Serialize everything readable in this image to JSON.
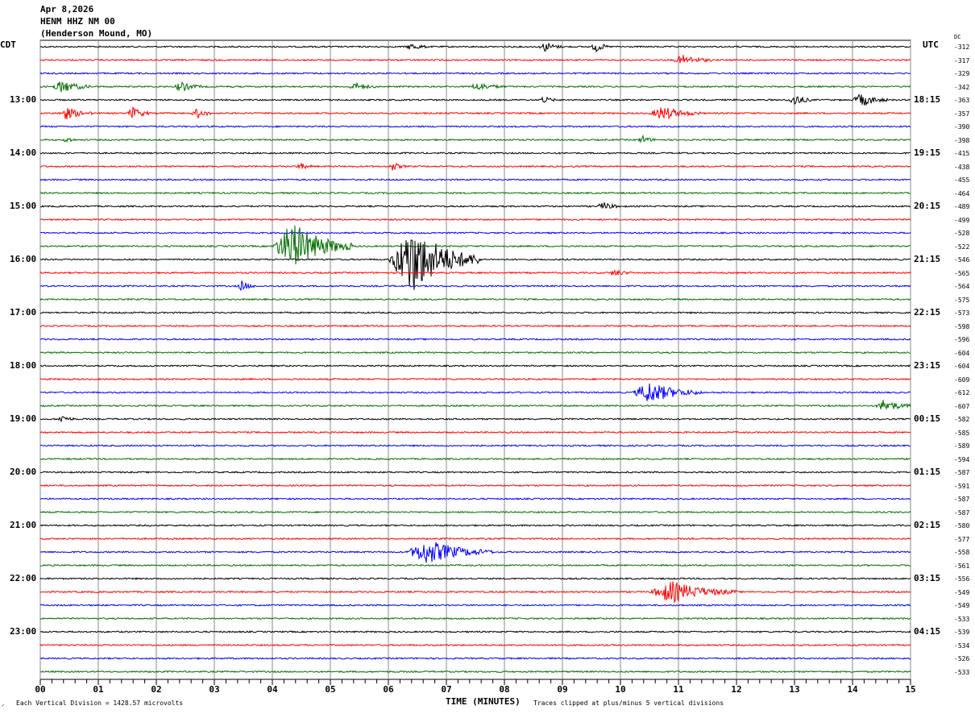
{
  "header": {
    "date": "Apr 8,2026",
    "station": "HENM HHZ NM 00",
    "location": "(Henderson Mound, MO)"
  },
  "left_axis_label": "CDT",
  "right_axis_label": "UTC",
  "dc_label": "DC",
  "footer": {
    "scale": "Each Vertical Division = 1428.57 microvolts",
    "xlabel": "TIME (MINUTES)",
    "clip_note": "Traces clipped at plus/minus 5 vertical divisions"
  },
  "chart_data": {
    "type": "line",
    "title": "HENM HHZ NM 00 helicorder",
    "xlabel": "TIME (MINUTES)",
    "xlim": [
      0,
      15
    ],
    "x_ticks": [
      "00",
      "01",
      "02",
      "03",
      "04",
      "05",
      "06",
      "07",
      "08",
      "09",
      "10",
      "11",
      "12",
      "13",
      "14",
      "15"
    ],
    "trace_colors": [
      "#000000",
      "#ff0000",
      "#0000ff",
      "#007000"
    ],
    "trace_count": 48,
    "cdt_labels": [
      {
        "trace": 4,
        "text": "13:00"
      },
      {
        "trace": 8,
        "text": "14:00"
      },
      {
        "trace": 12,
        "text": "15:00"
      },
      {
        "trace": 16,
        "text": "16:00"
      },
      {
        "trace": 20,
        "text": "17:00"
      },
      {
        "trace": 24,
        "text": "18:00"
      },
      {
        "trace": 28,
        "text": "19:00"
      },
      {
        "trace": 32,
        "text": "20:00"
      },
      {
        "trace": 36,
        "text": "21:00"
      },
      {
        "trace": 40,
        "text": "22:00"
      },
      {
        "trace": 44,
        "text": "23:00"
      }
    ],
    "utc_labels": [
      {
        "trace": 4,
        "text": "18:15"
      },
      {
        "trace": 8,
        "text": "19:15"
      },
      {
        "trace": 12,
        "text": "20:15"
      },
      {
        "trace": 16,
        "text": "21:15"
      },
      {
        "trace": 20,
        "text": "22:15"
      },
      {
        "trace": 24,
        "text": "23:15"
      },
      {
        "trace": 28,
        "text": "00:15"
      },
      {
        "trace": 32,
        "text": "01:15"
      },
      {
        "trace": 36,
        "text": "02:15"
      },
      {
        "trace": 40,
        "text": "03:15"
      },
      {
        "trace": 44,
        "text": "04:15"
      }
    ],
    "dc_offsets": [
      "-312",
      "-317",
      "-329",
      "-342",
      "-363",
      "-357",
      "-390",
      "-398",
      "-415",
      "-438",
      "-455",
      "-464",
      "-489",
      "-499",
      "-528",
      "-522",
      "-546",
      "-565",
      "-564",
      "-575",
      "-573",
      "-598",
      "-596",
      "-604",
      "-604",
      "-609",
      "-612",
      "-607",
      "-582",
      "-585",
      "-589",
      "-594",
      "-587",
      "-591",
      "-587",
      "-587",
      "-580",
      "-577",
      "-558",
      "-561",
      "-556",
      "-549",
      "-549",
      "-533",
      "-539",
      "-534",
      "-526",
      "-533"
    ],
    "events_divisions": [
      {
        "trace": 0,
        "start": 6.3,
        "dur": 0.4,
        "amp": 0.25
      },
      {
        "trace": 0,
        "start": 8.6,
        "dur": 0.4,
        "amp": 0.35
      },
      {
        "trace": 0,
        "start": 9.5,
        "dur": 0.3,
        "amp": 0.4
      },
      {
        "trace": 1,
        "start": 10.9,
        "dur": 0.7,
        "amp": 0.35
      },
      {
        "trace": 3,
        "start": 0.2,
        "dur": 0.7,
        "amp": 0.45
      },
      {
        "trace": 3,
        "start": 2.3,
        "dur": 0.5,
        "amp": 0.35
      },
      {
        "trace": 3,
        "start": 5.3,
        "dur": 0.5,
        "amp": 0.25
      },
      {
        "trace": 3,
        "start": 7.4,
        "dur": 0.6,
        "amp": 0.3
      },
      {
        "trace": 4,
        "start": 8.6,
        "dur": 0.3,
        "amp": 0.25
      },
      {
        "trace": 4,
        "start": 12.9,
        "dur": 0.4,
        "amp": 0.45
      },
      {
        "trace": 4,
        "start": 14.0,
        "dur": 0.6,
        "amp": 0.5
      },
      {
        "trace": 5,
        "start": 0.3,
        "dur": 0.6,
        "amp": 0.45
      },
      {
        "trace": 5,
        "start": 1.5,
        "dur": 0.4,
        "amp": 0.45
      },
      {
        "trace": 5,
        "start": 2.6,
        "dur": 0.4,
        "amp": 0.35
      },
      {
        "trace": 5,
        "start": 10.5,
        "dur": 0.9,
        "amp": 0.5
      },
      {
        "trace": 7,
        "start": 0.4,
        "dur": 0.2,
        "amp": 0.3
      },
      {
        "trace": 7,
        "start": 10.3,
        "dur": 0.3,
        "amp": 0.3
      },
      {
        "trace": 9,
        "start": 4.4,
        "dur": 0.3,
        "amp": 0.25
      },
      {
        "trace": 9,
        "start": 6.0,
        "dur": 0.3,
        "amp": 0.3
      },
      {
        "trace": 12,
        "start": 9.6,
        "dur": 0.4,
        "amp": 0.3
      },
      {
        "trace": 15,
        "start": 4.0,
        "dur": 1.4,
        "amp": 1.8
      },
      {
        "trace": 16,
        "start": 6.0,
        "dur": 1.6,
        "amp": 2.6
      },
      {
        "trace": 17,
        "start": 9.8,
        "dur": 0.4,
        "amp": 0.25
      },
      {
        "trace": 18,
        "start": 3.4,
        "dur": 0.3,
        "amp": 0.4
      },
      {
        "trace": 26,
        "start": 10.2,
        "dur": 1.2,
        "amp": 0.8
      },
      {
        "trace": 27,
        "start": 14.4,
        "dur": 0.6,
        "amp": 0.5
      },
      {
        "trace": 28,
        "start": 0.3,
        "dur": 0.3,
        "amp": 0.3
      },
      {
        "trace": 38,
        "start": 6.3,
        "dur": 1.5,
        "amp": 0.9
      },
      {
        "trace": 41,
        "start": 10.5,
        "dur": 1.5,
        "amp": 0.8
      }
    ]
  }
}
